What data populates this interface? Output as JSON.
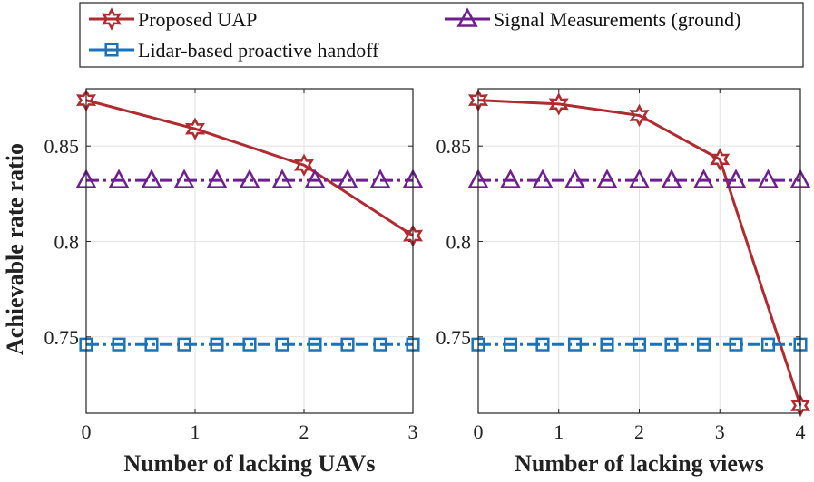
{
  "legend": {
    "items": [
      {
        "label": "Proposed UAP",
        "marker": "hexagram",
        "color": "#B02A2F"
      },
      {
        "label": "Signal Measurements (ground)",
        "marker": "triangle",
        "color": "#6F1E8F"
      },
      {
        "label": "Lidar-based proactive handoff",
        "marker": "square",
        "color": "#1A72B8"
      }
    ]
  },
  "ylabel": "Achievable rate ratio",
  "chart_data": [
    {
      "type": "line",
      "title": "",
      "xlabel": "Number of lacking UAVs",
      "ylabel": "Achievable rate ratio",
      "xlim": [
        0,
        3
      ],
      "ylim": [
        0.71,
        0.88
      ],
      "xticks": [
        0,
        1,
        2,
        3
      ],
      "yticks": [
        0.75,
        0.8,
        0.85
      ],
      "ytick_labels": [
        "0.75",
        "0.8",
        "0.85"
      ],
      "grid": true,
      "series": [
        {
          "name": "Proposed UAP",
          "color": "#B02A2F",
          "marker": "hexagram",
          "x": [
            0,
            1,
            2,
            3
          ],
          "y": [
            0.874,
            0.859,
            0.84,
            0.803
          ]
        },
        {
          "name": "Signal Measurements (ground)",
          "color": "#6F1E8F",
          "marker": "triangle",
          "dash": "dashdot",
          "x": [
            0,
            0.3,
            0.6,
            0.9,
            1.2,
            1.5,
            1.8,
            2.1,
            2.4,
            2.7,
            3.0
          ],
          "y": [
            0.832,
            0.832,
            0.832,
            0.832,
            0.832,
            0.832,
            0.832,
            0.832,
            0.832,
            0.832,
            0.832
          ]
        },
        {
          "name": "Lidar-based proactive handoff",
          "color": "#1A72B8",
          "marker": "square",
          "dash": "dashdot",
          "x": [
            0,
            0.3,
            0.6,
            0.9,
            1.2,
            1.5,
            1.8,
            2.1,
            2.4,
            2.7,
            3.0
          ],
          "y": [
            0.746,
            0.746,
            0.746,
            0.746,
            0.746,
            0.746,
            0.746,
            0.746,
            0.746,
            0.746,
            0.746
          ]
        }
      ]
    },
    {
      "type": "line",
      "title": "",
      "xlabel": "Number of lacking views",
      "ylabel": "",
      "xlim": [
        0,
        4
      ],
      "ylim": [
        0.71,
        0.88
      ],
      "xticks": [
        0,
        1,
        2,
        3,
        4
      ],
      "yticks": [
        0.75,
        0.8,
        0.85
      ],
      "ytick_labels": [
        "0.75",
        "0.8",
        "0.85"
      ],
      "grid": true,
      "series": [
        {
          "name": "Proposed UAP",
          "color": "#B02A2F",
          "marker": "hexagram",
          "x": [
            0,
            1,
            2,
            3,
            4
          ],
          "y": [
            0.874,
            0.872,
            0.866,
            0.843,
            0.714
          ]
        },
        {
          "name": "Signal Measurements (ground)",
          "color": "#6F1E8F",
          "marker": "triangle",
          "dash": "dashdot",
          "x": [
            0,
            0.4,
            0.8,
            1.2,
            1.6,
            2.0,
            2.4,
            2.8,
            3.2,
            3.6,
            4.0
          ],
          "y": [
            0.832,
            0.832,
            0.832,
            0.832,
            0.832,
            0.832,
            0.832,
            0.832,
            0.832,
            0.832,
            0.832
          ]
        },
        {
          "name": "Lidar-based proactive handoff",
          "color": "#1A72B8",
          "marker": "square",
          "dash": "dashdot",
          "x": [
            0,
            0.4,
            0.8,
            1.2,
            1.6,
            2.0,
            2.4,
            2.8,
            3.2,
            3.6,
            4.0
          ],
          "y": [
            0.746,
            0.746,
            0.746,
            0.746,
            0.746,
            0.746,
            0.746,
            0.746,
            0.746,
            0.746,
            0.746
          ]
        }
      ]
    }
  ]
}
